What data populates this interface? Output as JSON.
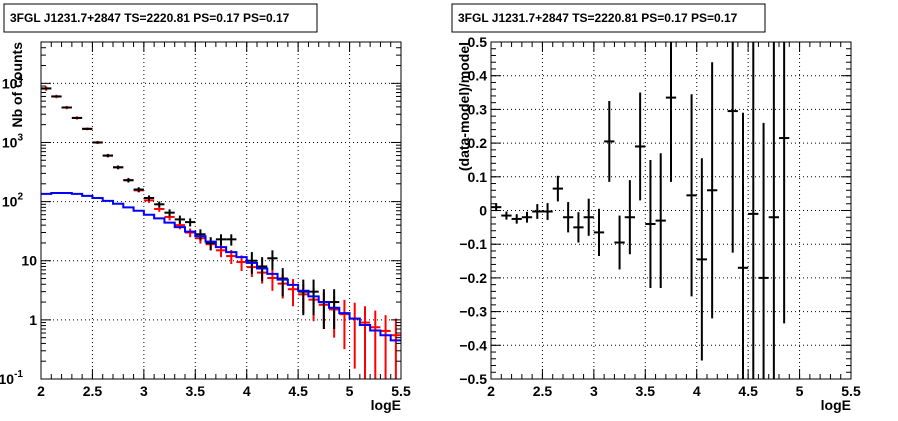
{
  "chart_data": [
    {
      "type": "scatter",
      "title": "3FGL J1231.7+2847 TS=2220.81 PS=0.17 PS=0.17",
      "xlabel": "logE",
      "ylabel": "Nb of counts",
      "xlim": [
        2,
        5.5
      ],
      "ylim": [
        0.1,
        50000
      ],
      "yscale": "log",
      "grid": true,
      "x_ticks": [
        {
          "v": 2,
          "label": "2"
        },
        {
          "v": 2.5,
          "label": "2.5"
        },
        {
          "v": 3,
          "label": "3"
        },
        {
          "v": 3.5,
          "label": "3.5"
        },
        {
          "v": 4,
          "label": "4"
        },
        {
          "v": 4.5,
          "label": "4.5"
        },
        {
          "v": 5,
          "label": "5"
        },
        {
          "v": 5.5,
          "label": "5.5"
        }
      ],
      "y_ticks": [
        {
          "v": 0.1,
          "label": "10",
          "sup": "-1"
        },
        {
          "v": 1,
          "label": "1",
          "sup": ""
        },
        {
          "v": 10,
          "label": "10",
          "sup": ""
        },
        {
          "v": 100,
          "label": "10",
          "sup": "2"
        },
        {
          "v": 1000,
          "label": "10",
          "sup": "3"
        },
        {
          "v": 10000,
          "label": "10",
          "sup": "4"
        }
      ],
      "bin_width": 0.1,
      "series": [
        {
          "color": "#ff0000",
          "style": "error-bars",
          "x": [
            2.05,
            2.15,
            2.25,
            2.35,
            2.45,
            2.55,
            2.65,
            2.75,
            2.85,
            2.95,
            3.05,
            3.15,
            3.25,
            3.35,
            3.45,
            3.55,
            3.65,
            3.75,
            3.85,
            3.95,
            4.05,
            4.15,
            4.25,
            4.35,
            4.45,
            4.55,
            4.65,
            4.75,
            4.85,
            4.95,
            5.05,
            5.15,
            5.25,
            5.35,
            5.45
          ],
          "y": [
            8200,
            6000,
            3900,
            2600,
            1700,
            1000,
            600,
            380,
            230,
            155,
            105,
            75,
            55,
            40,
            30,
            24,
            19,
            15,
            12,
            9.5,
            7.8,
            6.3,
            5.1,
            4.1,
            3.3,
            2.7,
            2.2,
            1.8,
            1.5,
            1.25,
            1.05,
            0.9,
            0.75,
            0.65,
            0.55
          ],
          "err_lo": [
            700,
            400,
            250,
            160,
            90,
            60,
            40,
            25,
            15,
            12,
            10,
            8,
            7,
            6,
            5,
            4.5,
            4,
            3.5,
            3.2,
            2.8,
            2.5,
            2.2,
            2,
            1.8,
            1.6,
            1.4,
            1.25,
            1.1,
            1.0,
            0.93,
            0.9,
            0.8,
            0.68,
            0.58,
            0.5
          ],
          "err_hi": [
            700,
            400,
            250,
            160,
            90,
            60,
            40,
            25,
            15,
            12,
            10,
            8,
            7,
            6,
            5,
            4.5,
            4,
            3.5,
            3.2,
            2.8,
            2.5,
            2.2,
            2,
            1.8,
            1.6,
            1.4,
            1.25,
            1.1,
            1.0,
            0.93,
            0.9,
            0.8,
            0.68,
            0.55,
            0.5
          ]
        },
        {
          "color": "#000000",
          "style": "cross",
          "x": [
            2.05,
            2.15,
            2.25,
            2.35,
            2.45,
            2.55,
            2.65,
            2.75,
            2.85,
            2.95,
            3.05,
            3.15,
            3.25,
            3.35,
            3.45,
            3.55,
            3.65,
            3.75,
            3.85,
            4.05,
            4.15,
            4.25,
            4.35,
            4.55,
            4.65,
            4.75,
            4.85
          ],
          "y": [
            8200,
            6000,
            3900,
            2600,
            1700,
            1000,
            600,
            380,
            230,
            160,
            115,
            90,
            65,
            50,
            45,
            28,
            20,
            23,
            23,
            10,
            8,
            11,
            5,
            3,
            3,
            2,
            2
          ],
          "err_lo": [
            150,
            110,
            90,
            70,
            60,
            45,
            35,
            28,
            20,
            15,
            12,
            10,
            9,
            8,
            7,
            6,
            5,
            5,
            5,
            4,
            3.5,
            4,
            2.5,
            1.8,
            1.8,
            1.3,
            1.3
          ],
          "err_hi": [
            150,
            110,
            90,
            70,
            60,
            45,
            35,
            28,
            20,
            15,
            12,
            10,
            9,
            8,
            7,
            6,
            5,
            5,
            5,
            4,
            3.5,
            4,
            2.5,
            1.8,
            1.8,
            1.3,
            1.3
          ]
        },
        {
          "color": "#0000ff",
          "style": "step",
          "x": [
            2.0,
            2.1,
            2.2,
            2.3,
            2.4,
            2.5,
            2.6,
            2.7,
            2.8,
            2.9,
            3.0,
            3.1,
            3.2,
            3.3,
            3.4,
            3.5,
            3.6,
            3.7,
            3.8,
            3.9,
            4.0,
            4.1,
            4.2,
            4.3,
            4.4,
            4.5,
            4.6,
            4.7,
            4.8,
            4.9,
            5.0,
            5.1,
            5.2,
            5.3,
            5.4
          ],
          "y": [
            135,
            140,
            140,
            135,
            125,
            115,
            103,
            92,
            80,
            70,
            60,
            52,
            44,
            37,
            31,
            26,
            21,
            17,
            14,
            11.5,
            9.2,
            7.4,
            6,
            4.8,
            3.9,
            3.1,
            2.5,
            2,
            1.6,
            1.3,
            1.05,
            0.82,
            0.66,
            0.55,
            0.45
          ]
        }
      ]
    },
    {
      "type": "scatter",
      "title": "3FGL J1231.7+2847 TS=2220.81 PS=0.17 PS=0.17",
      "xlabel": "logE",
      "ylabel": "(data-model)/model",
      "xlim": [
        2,
        5.5
      ],
      "ylim": [
        -0.5,
        0.5
      ],
      "grid": true,
      "x_ticks": [
        {
          "v": 2,
          "label": "2"
        },
        {
          "v": 2.5,
          "label": "2.5"
        },
        {
          "v": 3,
          "label": "3"
        },
        {
          "v": 3.5,
          "label": "3.5"
        },
        {
          "v": 4,
          "label": "4"
        },
        {
          "v": 4.5,
          "label": "4.5"
        },
        {
          "v": 5,
          "label": "5"
        },
        {
          "v": 5.5,
          "label": "5.5"
        }
      ],
      "y_ticks": [
        {
          "v": -0.5,
          "label": "−0.5"
        },
        {
          "v": -0.4,
          "label": "−0.4"
        },
        {
          "v": -0.3,
          "label": "−0.3"
        },
        {
          "v": -0.2,
          "label": "−0.2"
        },
        {
          "v": -0.1,
          "label": "−0.1"
        },
        {
          "v": 0,
          "label": "0"
        },
        {
          "v": 0.1,
          "label": "0.1"
        },
        {
          "v": 0.2,
          "label": "0.2"
        },
        {
          "v": 0.3,
          "label": "0.3"
        },
        {
          "v": 0.4,
          "label": "0.4"
        },
        {
          "v": 0.5,
          "label": "0.5"
        }
      ],
      "bin_width": 0.1,
      "series": [
        {
          "color": "#000000",
          "style": "cross",
          "x": [
            2.05,
            2.15,
            2.25,
            2.35,
            2.45,
            2.55,
            2.65,
            2.75,
            2.85,
            2.95,
            3.05,
            3.15,
            3.25,
            3.35,
            3.45,
            3.55,
            3.65,
            3.75,
            3.95,
            4.05,
            4.15,
            4.35,
            4.45,
            4.55,
            4.65,
            4.75,
            4.85
          ],
          "y": [
            0.01,
            -0.015,
            -0.025,
            -0.02,
            -0.003,
            -0.003,
            0.065,
            -0.02,
            -0.05,
            -0.02,
            -0.065,
            0.205,
            -0.095,
            -0.02,
            0.19,
            -0.04,
            -0.03,
            0.335,
            0.045,
            -0.145,
            0.06,
            0.295,
            -0.17,
            -0.01,
            -0.2,
            -0.02,
            0.215
          ],
          "err": [
            0.012,
            0.012,
            0.014,
            0.016,
            0.022,
            0.025,
            0.038,
            0.045,
            0.045,
            0.055,
            0.07,
            0.12,
            0.08,
            0.11,
            0.16,
            0.19,
            0.2,
            0.25,
            0.3,
            0.3,
            0.38,
            0.42,
            0.46,
            0.52,
            0.46,
            0.55,
            0.55
          ]
        }
      ]
    }
  ]
}
